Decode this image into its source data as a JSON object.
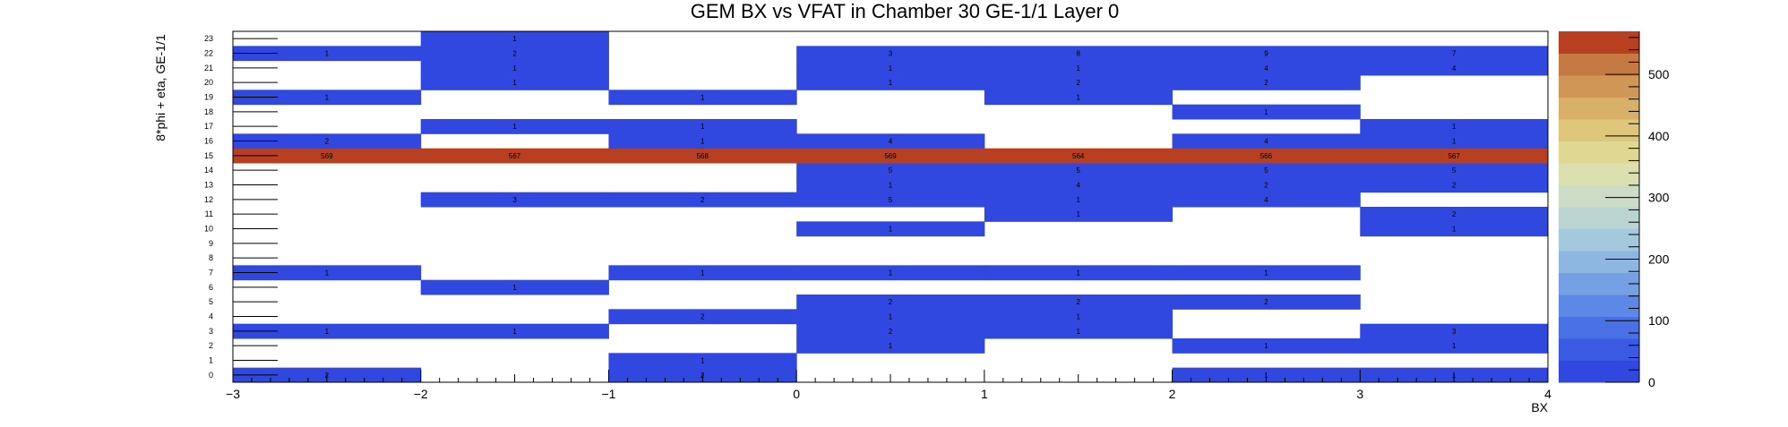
{
  "chart_data": {
    "type": "heatmap",
    "title": "GEM BX vs VFAT in Chamber 30 GE-1/1 Layer 0",
    "xlabel": "BX",
    "ylabel": "8*phi + eta, GE-1/1",
    "x_bins": [
      -3,
      -2,
      -1,
      0,
      1,
      2,
      3
    ],
    "x_tick_labels": [
      "−3",
      "−2",
      "−1",
      "0",
      "1",
      "2",
      "3",
      "4"
    ],
    "xlim": [
      -3,
      4
    ],
    "y_bins": [
      0,
      1,
      2,
      3,
      4,
      5,
      6,
      7,
      8,
      9,
      10,
      11,
      12,
      13,
      14,
      15,
      16,
      17,
      18,
      19,
      20,
      21,
      22,
      23
    ],
    "y_tick_labels": [
      "0",
      "1",
      "2",
      "3",
      "4",
      "5",
      "6",
      "7",
      "8",
      "9",
      "10",
      "11",
      "12",
      "13",
      "14",
      "15",
      "16",
      "17",
      "18",
      "19",
      "20",
      "21",
      "22",
      "23"
    ],
    "z_range": [
      0,
      570
    ],
    "colorbar_ticks": [
      "0",
      "100",
      "200",
      "300",
      "400",
      "500"
    ],
    "colorbar_tick_values": [
      0,
      100,
      200,
      300,
      400,
      500
    ],
    "colors": {
      "low": "#3047e0",
      "high": "#b83f20",
      "palette": [
        "#3047e0",
        "#3a5ae4",
        "#4a70e6",
        "#5d88e6",
        "#75a0e4",
        "#8db6e0",
        "#a4c8dc",
        "#bad4d4",
        "#cddcc6",
        "#dcdfb0",
        "#e0d793",
        "#dec77a",
        "#d9b068",
        "#d09655",
        "#c57a44",
        "#b83f20"
      ]
    },
    "cells": [
      [
        -3,
        0,
        2
      ],
      [
        -1,
        0,
        2
      ],
      [
        2,
        0,
        1
      ],
      [
        3,
        0,
        1
      ],
      [
        -1,
        1,
        1
      ],
      [
        0,
        2,
        1
      ],
      [
        2,
        2,
        1
      ],
      [
        3,
        2,
        1
      ],
      [
        -3,
        3,
        1
      ],
      [
        -2,
        3,
        1
      ],
      [
        0,
        3,
        2
      ],
      [
        1,
        3,
        1
      ],
      [
        3,
        3,
        3
      ],
      [
        -1,
        4,
        2
      ],
      [
        0,
        4,
        1
      ],
      [
        1,
        4,
        1
      ],
      [
        0,
        5,
        2
      ],
      [
        1,
        5,
        2
      ],
      [
        2,
        5,
        2
      ],
      [
        -2,
        6,
        1
      ],
      [
        -3,
        7,
        1
      ],
      [
        -1,
        7,
        1
      ],
      [
        0,
        7,
        1
      ],
      [
        1,
        7,
        1
      ],
      [
        2,
        7,
        1
      ],
      [
        0,
        10,
        1
      ],
      [
        3,
        10,
        1
      ],
      [
        1,
        11,
        1
      ],
      [
        3,
        11,
        2
      ],
      [
        -2,
        12,
        3
      ],
      [
        -1,
        12,
        2
      ],
      [
        0,
        12,
        5
      ],
      [
        1,
        12,
        1
      ],
      [
        2,
        12,
        4
      ],
      [
        0,
        13,
        1
      ],
      [
        1,
        13,
        4
      ],
      [
        2,
        13,
        2
      ],
      [
        3,
        13,
        2
      ],
      [
        0,
        14,
        5
      ],
      [
        1,
        14,
        5
      ],
      [
        2,
        14,
        5
      ],
      [
        3,
        14,
        5
      ],
      [
        -3,
        15,
        569
      ],
      [
        -2,
        15,
        567
      ],
      [
        -1,
        15,
        568
      ],
      [
        0,
        15,
        569
      ],
      [
        1,
        15,
        564
      ],
      [
        2,
        15,
        566
      ],
      [
        3,
        15,
        567
      ],
      [
        -3,
        16,
        2
      ],
      [
        -1,
        16,
        1
      ],
      [
        0,
        16,
        4
      ],
      [
        2,
        16,
        4
      ],
      [
        3,
        16,
        1
      ],
      [
        -2,
        17,
        1
      ],
      [
        -1,
        17,
        1
      ],
      [
        3,
        17,
        1
      ],
      [
        2,
        18,
        1
      ],
      [
        -3,
        19,
        1
      ],
      [
        -1,
        19,
        1
      ],
      [
        1,
        19,
        1
      ],
      [
        -2,
        20,
        1
      ],
      [
        0,
        20,
        1
      ],
      [
        1,
        20,
        2
      ],
      [
        2,
        20,
        2
      ],
      [
        -2,
        21,
        1
      ],
      [
        0,
        21,
        1
      ],
      [
        1,
        21,
        1
      ],
      [
        2,
        21,
        4
      ],
      [
        3,
        21,
        4
      ],
      [
        -3,
        22,
        1
      ],
      [
        -2,
        22,
        2
      ],
      [
        0,
        22,
        3
      ],
      [
        1,
        22,
        8
      ],
      [
        2,
        22,
        9
      ],
      [
        3,
        22,
        7
      ],
      [
        -2,
        23,
        1
      ]
    ]
  }
}
